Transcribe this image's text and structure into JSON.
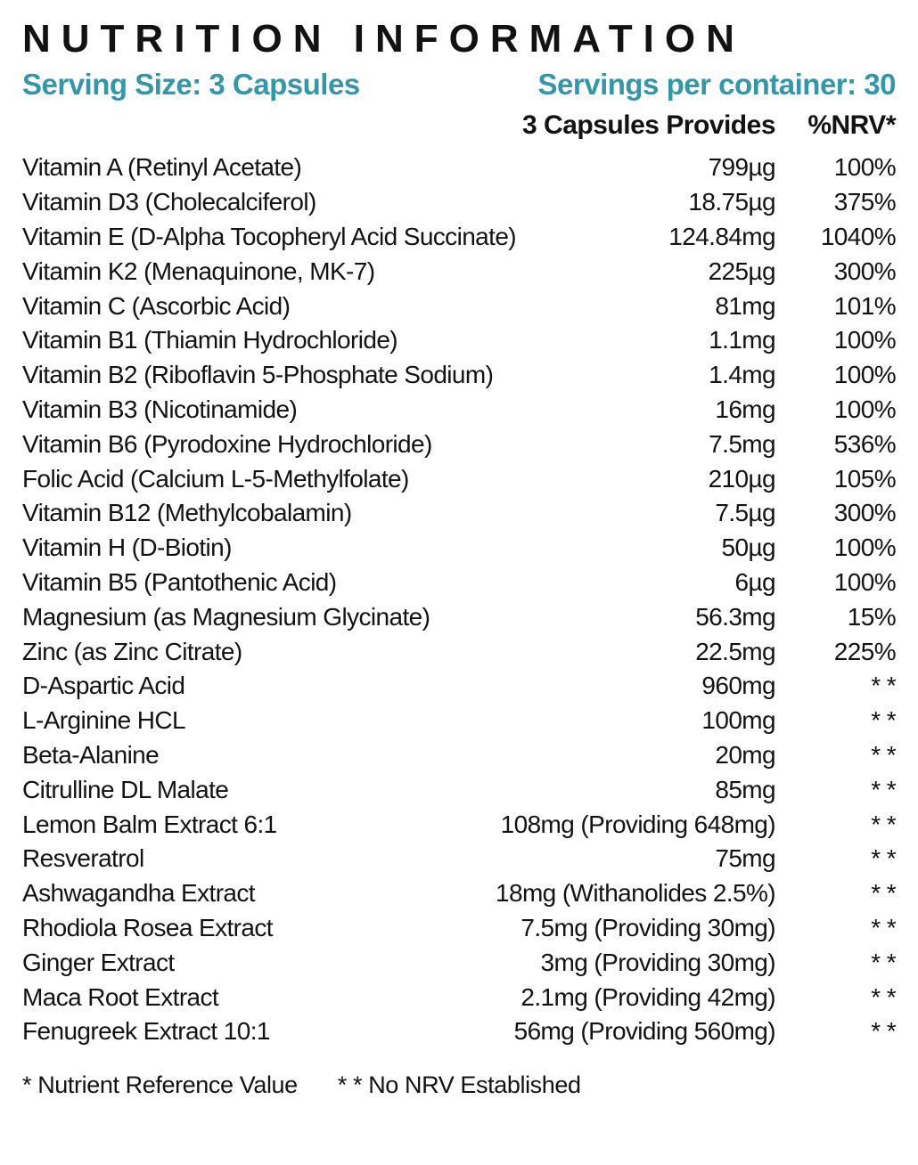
{
  "colors": {
    "accent_teal": "#3496A7",
    "text_black": "#131313"
  },
  "header": {
    "title": "NUTRITION INFORMATION",
    "serving_size": "Serving Size: 3 Capsules",
    "servings_per_container": "Servings per container: 30",
    "col_amount": "3 Capsules Provides",
    "col_nrv": "%NRV*"
  },
  "rows": [
    {
      "name": "Vitamin A (Retinyl Acetate)",
      "amount": "799µg",
      "nrv": "100%"
    },
    {
      "name": "Vitamin D3 (Cholecalciferol)",
      "amount": "18.75µg",
      "nrv": "375%"
    },
    {
      "name": "Vitamin E (D-Alpha Tocopheryl Acid Succinate)",
      "amount": "124.84mg",
      "nrv": "1040%"
    },
    {
      "name": "Vitamin K2 (Menaquinone, MK-7)",
      "amount": "225µg",
      "nrv": "300%"
    },
    {
      "name": "Vitamin C (Ascorbic Acid)",
      "amount": "81mg",
      "nrv": "101%"
    },
    {
      "name": "Vitamin B1 (Thiamin Hydrochloride)",
      "amount": "1.1mg",
      "nrv": "100%"
    },
    {
      "name": "Vitamin B2 (Riboflavin 5-Phosphate Sodium)",
      "amount": "1.4mg",
      "nrv": "100%"
    },
    {
      "name": "Vitamin B3 (Nicotinamide)",
      "amount": "16mg",
      "nrv": "100%"
    },
    {
      "name": "Vitamin B6 (Pyrodoxine Hydrochloride)",
      "amount": "7.5mg",
      "nrv": "536%"
    },
    {
      "name": "Folic Acid (Calcium L-5-Methylfolate)",
      "amount": "210µg",
      "nrv": "105%"
    },
    {
      "name": "Vitamin B12 (Methylcobalamin)",
      "amount": "7.5µg",
      "nrv": "300%"
    },
    {
      "name": "Vitamin H (D-Biotin)",
      "amount": "50µg",
      "nrv": "100%"
    },
    {
      "name": "Vitamin B5 (Pantothenic Acid)",
      "amount": "6µg",
      "nrv": "100%"
    },
    {
      "name": "Magnesium (as Magnesium Glycinate)",
      "amount": "56.3mg",
      "nrv": "15%"
    },
    {
      "name": "Zinc (as Zinc Citrate)",
      "amount": "22.5mg",
      "nrv": "225%"
    },
    {
      "name": "D-Aspartic Acid",
      "amount": "960mg",
      "nrv": "* *"
    },
    {
      "name": "L-Arginine HCL",
      "amount": "100mg",
      "nrv": "* *"
    },
    {
      "name": "Beta-Alanine",
      "amount": "20mg",
      "nrv": "* *"
    },
    {
      "name": "Citrulline DL Malate",
      "amount": "85mg",
      "nrv": "* *"
    },
    {
      "name": "Lemon Balm Extract 6:1",
      "amount": "108mg (Providing 648mg)",
      "nrv": "* *"
    },
    {
      "name": "Resveratrol",
      "amount": "75mg",
      "nrv": "* *"
    },
    {
      "name": "Ashwagandha Extract",
      "amount": "18mg (Withanolides 2.5%)",
      "nrv": "* *"
    },
    {
      "name": "Rhodiola Rosea Extract",
      "amount": "7.5mg (Providing 30mg)",
      "nrv": "* *"
    },
    {
      "name": "Ginger Extract",
      "amount": "3mg (Providing 30mg)",
      "nrv": "* *"
    },
    {
      "name": "Maca Root Extract",
      "amount": "2.1mg (Providing 42mg)",
      "nrv": "* *"
    },
    {
      "name": "Fenugreek Extract 10:1",
      "amount": "56mg (Providing 560mg)",
      "nrv": "* *"
    }
  ],
  "footnotes": {
    "nrv": "* Nutrient Reference Value",
    "no_nrv": "* * No NRV Established"
  }
}
